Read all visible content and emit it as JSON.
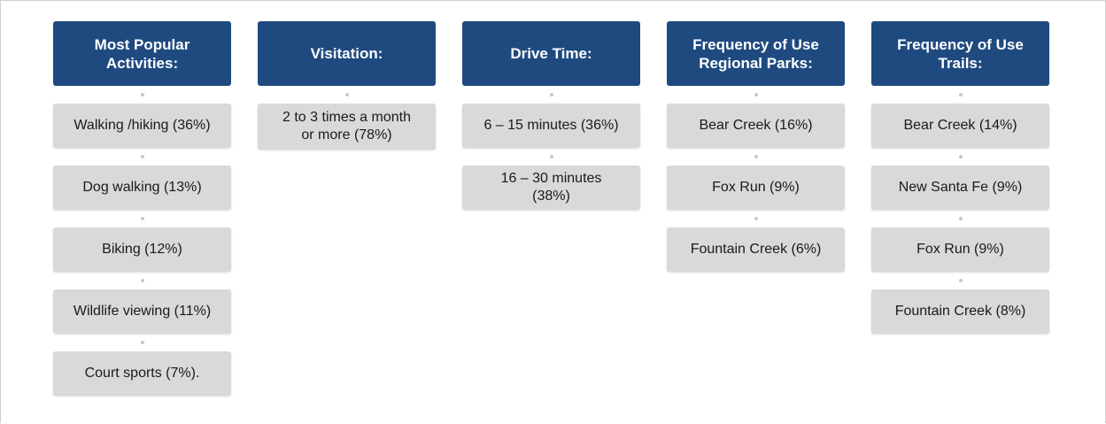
{
  "columns": [
    {
      "header": "Most Popular Activities:",
      "items": [
        "Walking /hiking (36%)",
        "Dog walking (13%)",
        "Biking (12%)",
        "Wildlife viewing (11%)",
        "Court sports (7%)."
      ]
    },
    {
      "header": "Visitation:",
      "items": [
        "2 to 3 times a month or more (78%)"
      ]
    },
    {
      "header": "Drive Time:",
      "items": [
        "6 – 15 minutes (36%)",
        "16 – 30 minutes (38%)"
      ]
    },
    {
      "header": "Frequency of Use Regional Parks:",
      "items": [
        "Bear Creek (16%)",
        "Fox Run (9%)",
        "Fountain Creek (6%)"
      ]
    },
    {
      "header": "Frequency of Use Trails:",
      "items": [
        "Bear Creek (14%)",
        "New Santa Fe (9%)",
        "Fox Run (9%)",
        "Fountain Creek (8%)"
      ]
    }
  ]
}
